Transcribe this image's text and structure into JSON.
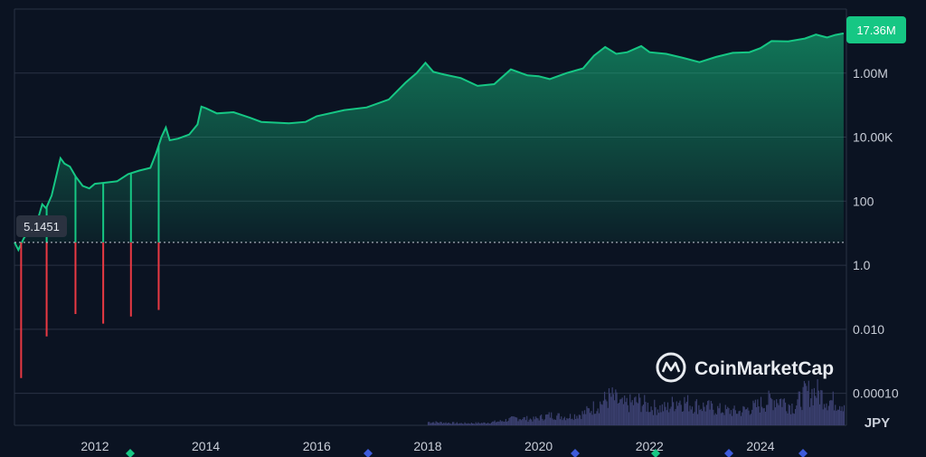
{
  "brand": {
    "name": "CoinMarketCap",
    "logo_icon": "coinmarketcap-logo-icon"
  },
  "currency_label": "JPY",
  "current_price_label": "17.36M",
  "start_price_label": "5.1451",
  "colors": {
    "background": "#0b1322",
    "up": "#16c784",
    "down": "#ea3943",
    "grid": "#2a3344",
    "volume": "#3a3f6e",
    "price_tag_bg": "#16c784"
  },
  "chart_data": {
    "type": "area",
    "log_scale": true,
    "grid": true,
    "legend": "none",
    "y_ticks": [
      "1.00M",
      "10.00K",
      "100",
      "1.0",
      "0.010",
      "0.00010"
    ],
    "y_tick_values": [
      1000000,
      10000,
      100,
      1,
      0.01,
      0.0001
    ],
    "x_ticks": [
      "2012",
      "2014",
      "2016",
      "2018",
      "2020",
      "2022",
      "2024"
    ],
    "x_tick_values": [
      2012,
      2014,
      2016,
      2018,
      2020,
      2022,
      2024
    ],
    "xlim": [
      2010.55,
      2025.55
    ],
    "ylim": [
      1e-05,
      100000000
    ],
    "baseline_value": 5.1451,
    "last_value": 17360000,
    "price_series": [
      [
        2010.55,
        5.2
      ],
      [
        2010.62,
        3.0
      ],
      [
        2010.72,
        7.0
      ],
      [
        2010.85,
        14.0
      ],
      [
        2010.95,
        20.0
      ],
      [
        2011.05,
        80.0
      ],
      [
        2011.12,
        60.0
      ],
      [
        2011.22,
        150.0
      ],
      [
        2011.32,
        800.0
      ],
      [
        2011.38,
        2200.0
      ],
      [
        2011.45,
        1500.0
      ],
      [
        2011.55,
        1200.0
      ],
      [
        2011.65,
        600.0
      ],
      [
        2011.78,
        300.0
      ],
      [
        2011.9,
        250.0
      ],
      [
        2012.0,
        350.0
      ],
      [
        2012.2,
        380.0
      ],
      [
        2012.4,
        420.0
      ],
      [
        2012.6,
        700.0
      ],
      [
        2012.8,
        900.0
      ],
      [
        2013.0,
        1100.0
      ],
      [
        2013.1,
        3000.0
      ],
      [
        2013.2,
        10000.0
      ],
      [
        2013.28,
        20000.0
      ],
      [
        2013.35,
        8000.0
      ],
      [
        2013.5,
        9000.0
      ],
      [
        2013.7,
        12000.0
      ],
      [
        2013.85,
        25000.0
      ],
      [
        2013.92,
        90000.0
      ],
      [
        2014.0,
        80000.0
      ],
      [
        2014.2,
        55000.0
      ],
      [
        2014.5,
        60000.0
      ],
      [
        2014.8,
        40000.0
      ],
      [
        2015.0,
        30000.0
      ],
      [
        2015.5,
        27000.0
      ],
      [
        2015.8,
        30000.0
      ],
      [
        2016.0,
        45000.0
      ],
      [
        2016.5,
        70000.0
      ],
      [
        2016.9,
        85000.0
      ],
      [
        2017.3,
        150000.0
      ],
      [
        2017.6,
        500000.0
      ],
      [
        2017.8,
        1000000.0
      ],
      [
        2017.96,
        2100000.0
      ],
      [
        2018.1,
        1100000.0
      ],
      [
        2018.3,
        900000.0
      ],
      [
        2018.6,
        700000.0
      ],
      [
        2018.9,
        400000.0
      ],
      [
        2019.2,
        450000.0
      ],
      [
        2019.5,
        1300000.0
      ],
      [
        2019.8,
        850000.0
      ],
      [
        2020.0,
        800000.0
      ],
      [
        2020.2,
        650000.0
      ],
      [
        2020.5,
        1000000.0
      ],
      [
        2020.8,
        1400000.0
      ],
      [
        2021.0,
        3500000.0
      ],
      [
        2021.2,
        6500000.0
      ],
      [
        2021.4,
        4000000.0
      ],
      [
        2021.6,
        4500000.0
      ],
      [
        2021.85,
        7000000.0
      ],
      [
        2022.0,
        4500000.0
      ],
      [
        2022.3,
        4000000.0
      ],
      [
        2022.6,
        3000000.0
      ],
      [
        2022.9,
        2200000.0
      ],
      [
        2023.2,
        3200000.0
      ],
      [
        2023.5,
        4300000.0
      ],
      [
        2023.8,
        4500000.0
      ],
      [
        2024.0,
        6000000.0
      ],
      [
        2024.2,
        10000000.0
      ],
      [
        2024.5,
        9800000.0
      ],
      [
        2024.8,
        12000000.0
      ],
      [
        2025.0,
        16000000.0
      ],
      [
        2025.2,
        13000000.0
      ],
      [
        2025.35,
        15500000.0
      ],
      [
        2025.5,
        17360000.0
      ]
    ],
    "dips": [
      {
        "x": 2010.67,
        "low": 0.0003
      },
      {
        "x": 2011.13,
        "low": 0.006
      },
      {
        "x": 2011.65,
        "low": 0.03
      },
      {
        "x": 2012.15,
        "low": 0.015
      },
      {
        "x": 2012.65,
        "low": 0.025
      },
      {
        "x": 2013.15,
        "low": 0.04
      }
    ],
    "volume_series": [
      [
        2018.0,
        0.1
      ],
      [
        2018.3,
        0.08
      ],
      [
        2018.6,
        0.06
      ],
      [
        2019.0,
        0.07
      ],
      [
        2019.3,
        0.12
      ],
      [
        2019.6,
        0.22
      ],
      [
        2019.9,
        0.18
      ],
      [
        2020.2,
        0.3
      ],
      [
        2020.5,
        0.25
      ],
      [
        2020.8,
        0.35
      ],
      [
        2021.0,
        0.55
      ],
      [
        2021.3,
        0.85
      ],
      [
        2021.5,
        0.6
      ],
      [
        2021.8,
        0.7
      ],
      [
        2022.0,
        0.55
      ],
      [
        2022.3,
        0.5
      ],
      [
        2022.5,
        0.75
      ],
      [
        2022.8,
        0.6
      ],
      [
        2023.0,
        0.55
      ],
      [
        2023.3,
        0.45
      ],
      [
        2023.6,
        0.4
      ],
      [
        2023.9,
        0.55
      ],
      [
        2024.1,
        0.7
      ],
      [
        2024.3,
        0.8
      ],
      [
        2024.6,
        0.55
      ],
      [
        2024.8,
        0.95
      ],
      [
        2025.0,
        1.0
      ],
      [
        2025.2,
        0.75
      ],
      [
        2025.5,
        0.65
      ]
    ]
  }
}
